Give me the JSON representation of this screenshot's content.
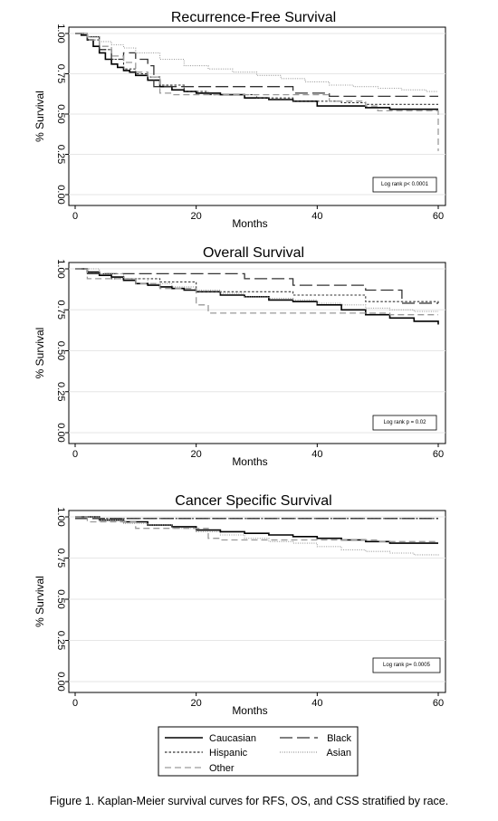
{
  "caption": "Figure 1. Kaplan-Meier survival curves for RFS, OS, and CSS stratified by race.",
  "legend": {
    "placement": "bottom",
    "entries": [
      {
        "name": "Caucasian",
        "color": "#000000",
        "dash": "solid"
      },
      {
        "name": "Black",
        "color": "#333333",
        "dash": "long-dash"
      },
      {
        "name": "Hispanic",
        "color": "#333333",
        "dash": "short-dash"
      },
      {
        "name": "Asian",
        "color": "#9a9a9a",
        "dash": "dotted"
      },
      {
        "name": "Other",
        "color": "#9a9a9a",
        "dash": "dash"
      }
    ]
  },
  "chart_data": [
    {
      "type": "line",
      "title": "Recurrence-Free Survival",
      "xlabel": "Months",
      "ylabel": "% Survival",
      "xlim": [
        0,
        60
      ],
      "ylim": [
        0,
        1
      ],
      "xticks": [
        "0",
        "20",
        "40",
        "60"
      ],
      "yticks": [
        "0.00",
        "0.25",
        "0.50",
        "0.75",
        "1.00"
      ],
      "grid": true,
      "annotation": "Log rank p< 0.0001",
      "series": [
        {
          "name": "Caucasian",
          "x": [
            0,
            1,
            2,
            3,
            4,
            5,
            6,
            7,
            8,
            9,
            10,
            12,
            14,
            16,
            18,
            20,
            24,
            28,
            32,
            36,
            40,
            44,
            48,
            52,
            56,
            60
          ],
          "y": [
            1.0,
            0.99,
            0.96,
            0.92,
            0.88,
            0.84,
            0.81,
            0.79,
            0.77,
            0.76,
            0.74,
            0.71,
            0.67,
            0.65,
            0.64,
            0.63,
            0.62,
            0.6,
            0.59,
            0.58,
            0.55,
            0.55,
            0.54,
            0.53,
            0.53,
            0.53
          ]
        },
        {
          "name": "Black",
          "x": [
            0,
            2,
            4,
            6,
            8,
            10,
            12,
            13,
            20,
            28,
            36,
            42,
            60
          ],
          "y": [
            1.0,
            0.98,
            0.9,
            0.84,
            0.88,
            0.84,
            0.8,
            0.67,
            0.67,
            0.67,
            0.63,
            0.61,
            0.61
          ]
        },
        {
          "name": "Hispanic",
          "x": [
            0,
            2,
            4,
            6,
            8,
            10,
            12,
            14,
            18,
            22,
            30,
            36,
            44,
            48,
            52,
            60
          ],
          "y": [
            1.0,
            0.96,
            0.9,
            0.84,
            0.78,
            0.75,
            0.73,
            0.68,
            0.64,
            0.62,
            0.6,
            0.58,
            0.57,
            0.56,
            0.56,
            0.56
          ]
        },
        {
          "name": "Asian",
          "x": [
            0,
            2,
            4,
            6,
            8,
            10,
            14,
            18,
            22,
            26,
            30,
            34,
            38,
            42,
            46,
            50,
            54,
            58,
            60
          ],
          "y": [
            1.0,
            0.98,
            0.95,
            0.93,
            0.91,
            0.88,
            0.84,
            0.8,
            0.78,
            0.76,
            0.74,
            0.72,
            0.7,
            0.68,
            0.67,
            0.66,
            0.65,
            0.64,
            0.64
          ]
        },
        {
          "name": "Other",
          "x": [
            0,
            2,
            4,
            6,
            8,
            10,
            12,
            14,
            16,
            20,
            28,
            36,
            42,
            48,
            50,
            58,
            60,
            60
          ],
          "y": [
            1.0,
            0.96,
            0.92,
            0.86,
            0.82,
            0.76,
            0.73,
            0.63,
            0.62,
            0.62,
            0.62,
            0.62,
            0.58,
            0.55,
            0.52,
            0.52,
            0.52,
            0.27
          ]
        }
      ]
    },
    {
      "type": "line",
      "title": "Overall Survival",
      "xlabel": "Months",
      "ylabel": "% Survival",
      "xlim": [
        0,
        60
      ],
      "ylim": [
        0,
        1
      ],
      "xticks": [
        "0",
        "20",
        "40",
        "60"
      ],
      "yticks": [
        "0.00",
        "0.25",
        "0.50",
        "0.75",
        "1.00"
      ],
      "grid": true,
      "annotation": "Log rank p = 0.02",
      "series": [
        {
          "name": "Caucasian",
          "x": [
            0,
            2,
            4,
            6,
            8,
            10,
            12,
            14,
            16,
            18,
            20,
            24,
            28,
            32,
            36,
            40,
            44,
            48,
            52,
            56,
            60
          ],
          "y": [
            1.0,
            0.98,
            0.96,
            0.95,
            0.93,
            0.91,
            0.9,
            0.89,
            0.88,
            0.87,
            0.86,
            0.84,
            0.83,
            0.81,
            0.8,
            0.78,
            0.75,
            0.72,
            0.7,
            0.68,
            0.66
          ]
        },
        {
          "name": "Black",
          "x": [
            0,
            2,
            18,
            28,
            36,
            48,
            54,
            60
          ],
          "y": [
            1.0,
            0.97,
            0.97,
            0.94,
            0.9,
            0.87,
            0.79,
            0.79
          ]
        },
        {
          "name": "Hispanic",
          "x": [
            0,
            2,
            6,
            14,
            20,
            36,
            48,
            60
          ],
          "y": [
            1.0,
            0.97,
            0.94,
            0.92,
            0.86,
            0.84,
            0.8,
            0.78
          ]
        },
        {
          "name": "Asian",
          "x": [
            0,
            4,
            8,
            12,
            16,
            20,
            24,
            28,
            32,
            36,
            40,
            44,
            48,
            52,
            56,
            60
          ],
          "y": [
            1.0,
            0.97,
            0.94,
            0.91,
            0.89,
            0.87,
            0.85,
            0.83,
            0.82,
            0.81,
            0.79,
            0.78,
            0.76,
            0.75,
            0.74,
            0.74
          ]
        },
        {
          "name": "Other",
          "x": [
            0,
            2,
            10,
            14,
            20,
            22,
            40,
            52,
            60
          ],
          "y": [
            1.0,
            0.94,
            0.91,
            0.88,
            0.78,
            0.73,
            0.73,
            0.72,
            0.72
          ]
        }
      ]
    },
    {
      "type": "line",
      "title": "Cancer Specific Survival",
      "xlabel": "Months",
      "ylabel": "% Survival",
      "xlim": [
        0,
        60
      ],
      "ylim": [
        0,
        1
      ],
      "xticks": [
        "0",
        "20",
        "40",
        "60"
      ],
      "yticks": [
        "0.00",
        "0.25",
        "0.50",
        "0.75",
        "1.00"
      ],
      "grid": true,
      "annotation": "Log rank p= 0.0005",
      "series": [
        {
          "name": "Caucasian",
          "x": [
            0,
            4,
            8,
            12,
            16,
            20,
            24,
            28,
            32,
            36,
            40,
            44,
            48,
            52,
            56,
            60
          ],
          "y": [
            1.0,
            0.98,
            0.97,
            0.95,
            0.94,
            0.92,
            0.91,
            0.9,
            0.89,
            0.88,
            0.87,
            0.86,
            0.85,
            0.84,
            0.84,
            0.84
          ]
        },
        {
          "name": "Black",
          "x": [
            0,
            60
          ],
          "y": [
            0.99,
            0.99
          ]
        },
        {
          "name": "Hispanic",
          "x": [
            0,
            4,
            60
          ],
          "y": [
            1.0,
            0.99,
            0.99
          ]
        },
        {
          "name": "Asian",
          "x": [
            0,
            4,
            8,
            12,
            16,
            20,
            24,
            28,
            32,
            36,
            40,
            44,
            48,
            52,
            56,
            60
          ],
          "y": [
            1.0,
            0.98,
            0.96,
            0.95,
            0.93,
            0.91,
            0.89,
            0.87,
            0.85,
            0.84,
            0.82,
            0.8,
            0.79,
            0.78,
            0.77,
            0.76
          ]
        },
        {
          "name": "Other",
          "x": [
            0,
            2,
            10,
            16,
            22,
            24,
            36,
            50,
            60
          ],
          "y": [
            1.0,
            0.97,
            0.93,
            0.93,
            0.87,
            0.86,
            0.86,
            0.85,
            0.85
          ]
        }
      ]
    }
  ]
}
